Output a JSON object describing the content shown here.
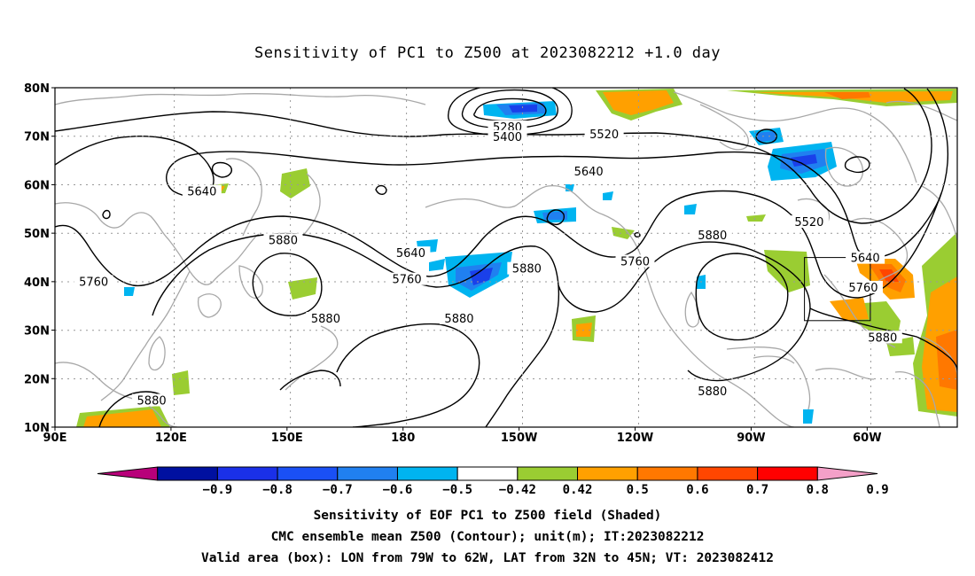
{
  "title": "Sensitivity of PC1 to Z500 at 2023082212 +1.0 day",
  "lat_labels": [
    {
      "lat": 80,
      "text": "80N"
    },
    {
      "lat": 70,
      "text": "70N"
    },
    {
      "lat": 60,
      "text": "60N"
    },
    {
      "lat": 50,
      "text": "50N"
    },
    {
      "lat": 40,
      "text": "40N"
    },
    {
      "lat": 30,
      "text": "30N"
    },
    {
      "lat": 20,
      "text": "20N"
    },
    {
      "lat": 10,
      "text": "10N"
    }
  ],
  "lon_labels": [
    {
      "lon": 90,
      "text": "90E"
    },
    {
      "lon": 120,
      "text": "120E"
    },
    {
      "lon": 150,
      "text": "150E"
    },
    {
      "lon": 180,
      "text": "180"
    },
    {
      "lon": 210,
      "text": "150W"
    },
    {
      "lon": 240,
      "text": "120W"
    },
    {
      "lon": 270,
      "text": "90W"
    },
    {
      "lon": 300,
      "text": "60W"
    }
  ],
  "contour_labels": [
    {
      "text": "5280",
      "lon": 207,
      "lat": 71.8
    },
    {
      "text": "5400",
      "lon": 207,
      "lat": 69.8
    },
    {
      "text": "5520",
      "lon": 232,
      "lat": 70.3
    },
    {
      "text": "5640",
      "lon": 228,
      "lat": 62.6
    },
    {
      "text": "5640",
      "lon": 128,
      "lat": 58.5
    },
    {
      "text": "5520",
      "lon": 285,
      "lat": 52.2
    },
    {
      "text": "5640",
      "lon": 182,
      "lat": 45.8
    },
    {
      "text": "5640",
      "lon": 299.5,
      "lat": 44.8
    },
    {
      "text": "5880",
      "lon": 149,
      "lat": 48.5
    },
    {
      "text": "5880",
      "lon": 212,
      "lat": 42.6
    },
    {
      "text": "5880",
      "lon": 260,
      "lat": 49.5
    },
    {
      "text": "5760",
      "lon": 181,
      "lat": 40.4
    },
    {
      "text": "5760",
      "lon": 240,
      "lat": 44.1
    },
    {
      "text": "5760",
      "lon": 100,
      "lat": 39.9
    },
    {
      "text": "5760",
      "lon": 299,
      "lat": 38.7
    },
    {
      "text": "5880",
      "lon": 160,
      "lat": 32.3
    },
    {
      "text": "5880",
      "lon": 194.5,
      "lat": 32.3
    },
    {
      "text": "5880",
      "lon": 304,
      "lat": 28.4
    },
    {
      "text": "5880",
      "lon": 260,
      "lat": 17.3
    },
    {
      "text": "5880",
      "lon": 115,
      "lat": 15.4
    }
  ],
  "colorbar": {
    "colors": [
      "#b8007a",
      "#0010a0",
      "#1a30e8",
      "#1a50f5",
      "#2080f0",
      "#00b4f0",
      "#ffffff",
      "#9acd32",
      "#ffa000",
      "#ff7800",
      "#ff4600",
      "#ff0000",
      "#f4a0c8"
    ],
    "labels": [
      "-0.9",
      "-0.8",
      "-0.7",
      "-0.6",
      "-0.5",
      "-0.42",
      "0.42",
      "0.5",
      "0.6",
      "0.7",
      "0.8",
      "0.9"
    ]
  },
  "valid_box": {
    "lon_w": 79,
    "lon_e": 62,
    "lat_s": 32,
    "lat_n": 45
  },
  "captions": {
    "line1": "Sensitivity of EOF PC1 to Z500 field (Shaded)",
    "line2": "CMC ensemble mean Z500 (Contour); unit(m); IT:2023082212",
    "line3": "Valid area (box): LON from 79W to 62W, LAT from 32N to 45N; VT: 2023082412"
  }
}
